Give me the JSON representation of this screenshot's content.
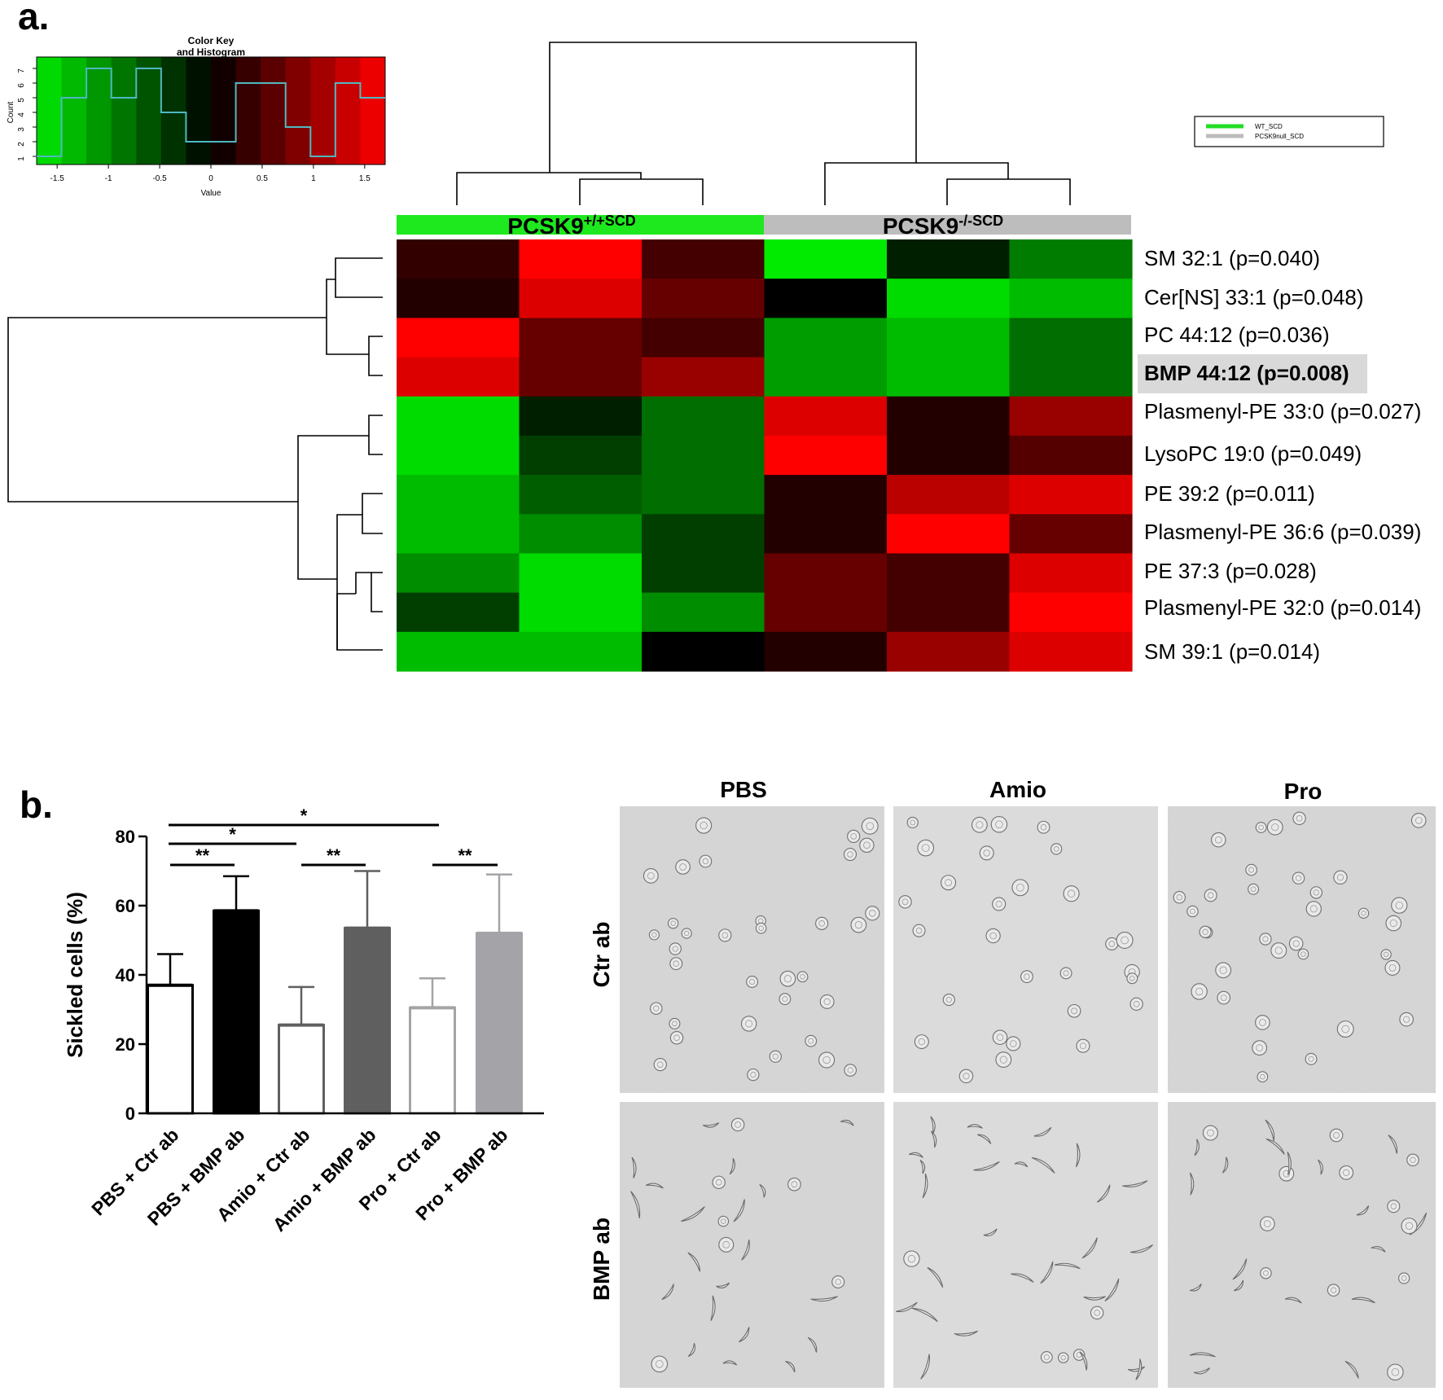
{
  "panel_a": {
    "label": "a.",
    "color_key": {
      "title_line1": "Color Key",
      "title_line2": "and Histogram",
      "x_label": "Value",
      "y_label": "Count",
      "x_ticks": [
        "-1.5",
        "-1",
        "-0.5",
        "0",
        "0.5",
        "1",
        "1.5"
      ],
      "y_ticks": [
        "1",
        "2",
        "3",
        "4",
        "5",
        "6",
        "7"
      ],
      "histogram_counts": [
        1,
        5,
        7,
        5,
        7,
        4,
        2,
        2,
        6,
        6,
        3,
        1,
        6,
        5
      ],
      "line_color": "#4fb8c0"
    },
    "legend": [
      {
        "label": "WT_SCD",
        "color": "#22dd22"
      },
      {
        "label": "PCSK9null_SCD",
        "color": "#bdbdbd"
      }
    ],
    "group_headers": [
      {
        "base": "PCSK9",
        "sup": "+/+SCD",
        "color": "#1ee81e"
      },
      {
        "base": "PCSK9",
        "sup": "-/-SCD",
        "color": "#bdbdbd"
      }
    ],
    "highlight_color": "#d9d9d9"
  },
  "chart_data": [
    {
      "type": "heatmap",
      "title": "",
      "columns": [
        "PCSK9+/+SCD 1",
        "PCSK9+/+SCD 2",
        "PCSK9+/+SCD 3",
        "PCSK9-/-SCD 1",
        "PCSK9-/-SCD 2",
        "PCSK9-/-SCD 3"
      ],
      "rows": [
        "SM 32:1 (p=0.040)",
        "Cer[NS] 33:1 (p=0.048)",
        "PC 44:12 (p=0.036)",
        "BMP 44:12 (p=0.008)",
        "Plasmenyl-PE 33:0 (p=0.027)",
        "LysoPC 19:0 (p=0.049)",
        "PE 39:2 (p=0.011)",
        "Plasmenyl-PE 36:6 (p=0.039)",
        "PE 37:3 (p=0.028)",
        "Plasmenyl-PE 32:0 (p=0.014)",
        "SM 39:1 (p=0.014)"
      ],
      "highlighted_row": "BMP 44:12 (p=0.008)",
      "values": [
        [
          0.3,
          1.5,
          0.4,
          -1.5,
          -0.2,
          -0.8
        ],
        [
          0.2,
          1.3,
          0.6,
          0.0,
          -1.4,
          -1.2
        ],
        [
          1.5,
          0.6,
          0.4,
          -1.0,
          -1.2,
          -0.7
        ],
        [
          1.3,
          0.6,
          0.9,
          -1.0,
          -1.2,
          -0.7
        ],
        [
          -1.4,
          -0.2,
          -0.7,
          1.3,
          0.2,
          0.9
        ],
        [
          -1.4,
          -0.4,
          -0.7,
          1.5,
          0.2,
          0.5
        ],
        [
          -1.2,
          -0.6,
          -0.7,
          0.2,
          1.1,
          1.3
        ],
        [
          -1.2,
          -0.9,
          -0.4,
          0.2,
          1.5,
          0.6
        ],
        [
          -0.9,
          -1.4,
          -0.4,
          0.6,
          0.4,
          1.3
        ],
        [
          -0.4,
          -1.4,
          -0.9,
          0.6,
          0.4,
          1.5
        ],
        [
          -1.2,
          -1.2,
          0.0,
          0.2,
          0.9,
          1.3
        ]
      ],
      "color_scale": {
        "min": -1.5,
        "max": 1.5,
        "low": "green",
        "mid": "black",
        "high": "red"
      }
    },
    {
      "type": "bar",
      "title": "",
      "categories": [
        "PBS + Ctr ab",
        "PBS + BMP ab",
        "Amio + Ctr ab",
        "Amio + BMP ab",
        "Pro + Ctr ab",
        "Pro + BMP ab"
      ],
      "values": [
        37,
        58.5,
        25.5,
        53.5,
        30.5,
        52
      ],
      "errors": [
        9,
        10,
        11,
        16.5,
        8.5,
        17
      ],
      "fill_colors": [
        "#ffffff",
        "#000000",
        "#ffffff",
        "#5f5f5f",
        "#ffffff",
        "#a4a4a8"
      ],
      "edge_colors": [
        "#000000",
        "#000000",
        "#5f5f5f",
        "#5f5f5f",
        "#a4a4a8",
        "#a4a4a8"
      ],
      "xlabel": "",
      "ylabel": "Sickled cells (%)",
      "ylim": [
        0,
        80
      ],
      "yticks": [
        "0",
        "20",
        "40",
        "60",
        "80"
      ],
      "significance": [
        {
          "from": 0,
          "to": 1,
          "label": "**",
          "level": 1
        },
        {
          "from": 2,
          "to": 3,
          "label": "**",
          "level": 1
        },
        {
          "from": 4,
          "to": 5,
          "label": "**",
          "level": 1
        },
        {
          "from": 0,
          "to": 2,
          "label": "*",
          "level": 2
        },
        {
          "from": 0,
          "to": 4,
          "label": "*",
          "level": 3
        }
      ]
    }
  ],
  "panel_b": {
    "label": "b.",
    "micrographs": {
      "columns": [
        "PBS",
        "Amio",
        "Pro"
      ],
      "rows": [
        "Ctr ab",
        "BMP ab"
      ]
    }
  }
}
